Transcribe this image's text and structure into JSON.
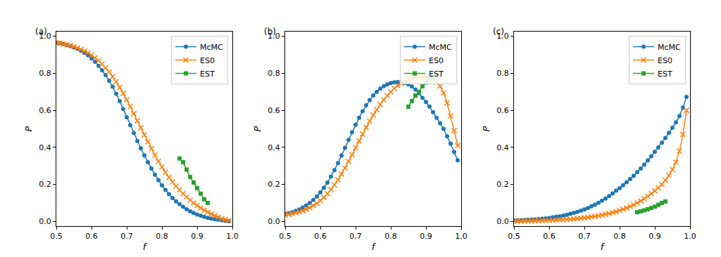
{
  "chart_data": [
    {
      "type": "line",
      "title": "(a)",
      "x_label": "f",
      "y_label": "P",
      "xlim": [
        0.5,
        1.0
      ],
      "ylim": [
        -0.025,
        1.025
      ],
      "xticks": [
        0.5,
        0.6,
        0.7,
        0.8,
        0.9,
        {
          "value": 1.0,
          "label": "1.0"
        }
      ],
      "yticks": [
        {
          "value": 0.0,
          "label": "0.0"
        },
        0.2,
        0.4,
        0.6,
        0.8,
        {
          "value": 1.0,
          "label": "1.0"
        }
      ],
      "grid": false,
      "legend": "upper right",
      "x": [
        0.5,
        0.51,
        0.52,
        0.53,
        0.54,
        0.55,
        0.56,
        0.57,
        0.58,
        0.59,
        0.6,
        0.61,
        0.62,
        0.63,
        0.64,
        0.65,
        0.66,
        0.67,
        0.68,
        0.69,
        0.7,
        0.71,
        0.72,
        0.73,
        0.74,
        0.75,
        0.76,
        0.77,
        0.78,
        0.79,
        0.8,
        0.81,
        0.82,
        0.83,
        0.84,
        0.85,
        0.86,
        0.87,
        0.88,
        0.89,
        0.9,
        0.91,
        0.92,
        0.93,
        0.94,
        0.95,
        0.96,
        0.97,
        0.98,
        0.99
      ],
      "series": [
        {
          "name": "McMC",
          "color": "#1f77b4",
          "marker": "circle",
          "line_style": "solid",
          "values": [
            0.965,
            0.962,
            0.958,
            0.953,
            0.947,
            0.94,
            0.932,
            0.922,
            0.91,
            0.897,
            0.88,
            0.862,
            0.84,
            0.816,
            0.79,
            0.76,
            0.727,
            0.69,
            0.65,
            0.607,
            0.563,
            0.52,
            0.477,
            0.435,
            0.395,
            0.357,
            0.32,
            0.286,
            0.253,
            0.223,
            0.195,
            0.17,
            0.147,
            0.127,
            0.109,
            0.093,
            0.079,
            0.066,
            0.055,
            0.046,
            0.038,
            0.031,
            0.025,
            0.02,
            0.016,
            0.012,
            0.009,
            0.006,
            0.004,
            0.002
          ]
        },
        {
          "name": "ES0",
          "color": "#ff7f0e",
          "marker": "x",
          "line_style": "solid",
          "values": [
            0.965,
            0.962,
            0.958,
            0.954,
            0.95,
            0.944,
            0.937,
            0.929,
            0.92,
            0.91,
            0.898,
            0.884,
            0.868,
            0.85,
            0.83,
            0.807,
            0.782,
            0.754,
            0.724,
            0.692,
            0.657,
            0.62,
            0.582,
            0.544,
            0.506,
            0.468,
            0.43,
            0.393,
            0.358,
            0.325,
            0.294,
            0.265,
            0.238,
            0.213,
            0.19,
            0.17,
            0.15,
            0.132,
            0.115,
            0.1,
            0.086,
            0.073,
            0.061,
            0.05,
            0.04,
            0.031,
            0.023,
            0.016,
            0.01,
            0.005
          ]
        },
        {
          "name": "EST",
          "color": "#2ca02c",
          "marker": "square",
          "line_style": "solid",
          "x": [
            0.85,
            0.86,
            0.87,
            0.88,
            0.89,
            0.9,
            0.91,
            0.92,
            0.93
          ],
          "values": [
            0.34,
            0.32,
            0.28,
            0.24,
            0.21,
            0.18,
            0.15,
            0.12,
            0.1
          ]
        }
      ]
    },
    {
      "type": "line",
      "title": "(b)",
      "x_label": "f",
      "y_label": "P",
      "xlim": [
        0.5,
        1.0
      ],
      "ylim": [
        -0.025,
        1.025
      ],
      "xticks": [
        0.5,
        0.6,
        0.7,
        0.8,
        0.9,
        {
          "value": 1.0,
          "label": "1.0"
        }
      ],
      "yticks": [
        {
          "value": 0.0,
          "label": "0.0"
        },
        0.2,
        0.4,
        0.6,
        0.8,
        {
          "value": 1.0,
          "label": "1.0"
        }
      ],
      "grid": false,
      "legend": "upper right",
      "x": [
        0.5,
        0.51,
        0.52,
        0.53,
        0.54,
        0.55,
        0.56,
        0.57,
        0.58,
        0.59,
        0.6,
        0.61,
        0.62,
        0.63,
        0.64,
        0.65,
        0.66,
        0.67,
        0.68,
        0.69,
        0.7,
        0.71,
        0.72,
        0.73,
        0.74,
        0.75,
        0.76,
        0.77,
        0.78,
        0.79,
        0.8,
        0.81,
        0.82,
        0.83,
        0.84,
        0.85,
        0.86,
        0.87,
        0.88,
        0.89,
        0.9,
        0.91,
        0.92,
        0.93,
        0.94,
        0.95,
        0.96,
        0.97,
        0.98,
        0.99
      ],
      "series": [
        {
          "name": "McMC",
          "color": "#1f77b4",
          "marker": "circle",
          "line_style": "solid",
          "values": [
            0.04,
            0.045,
            0.05,
            0.057,
            0.065,
            0.075,
            0.087,
            0.1,
            0.116,
            0.135,
            0.157,
            0.182,
            0.21,
            0.242,
            0.277,
            0.315,
            0.356,
            0.398,
            0.44,
            0.482,
            0.522,
            0.56,
            0.595,
            0.627,
            0.655,
            0.68,
            0.7,
            0.717,
            0.73,
            0.74,
            0.747,
            0.751,
            0.753,
            0.752,
            0.748,
            0.74,
            0.728,
            0.712,
            0.692,
            0.668,
            0.645,
            0.62,
            0.59,
            0.56,
            0.53,
            0.5,
            0.46,
            0.42,
            0.375,
            0.33
          ]
        },
        {
          "name": "ES0",
          "color": "#ff7f0e",
          "marker": "x",
          "line_style": "solid",
          "values": [
            0.035,
            0.038,
            0.042,
            0.047,
            0.052,
            0.058,
            0.066,
            0.075,
            0.086,
            0.098,
            0.113,
            0.13,
            0.15,
            0.172,
            0.197,
            0.225,
            0.256,
            0.289,
            0.324,
            0.361,
            0.398,
            0.435,
            0.472,
            0.508,
            0.542,
            0.574,
            0.604,
            0.632,
            0.657,
            0.68,
            0.7,
            0.718,
            0.733,
            0.746,
            0.757,
            0.766,
            0.773,
            0.778,
            0.781,
            0.782,
            0.78,
            0.775,
            0.766,
            0.752,
            0.73,
            0.695,
            0.64,
            0.57,
            0.49,
            0.41
          ]
        },
        {
          "name": "EST",
          "color": "#2ca02c",
          "marker": "square",
          "line_style": "solid",
          "x": [
            0.85,
            0.86,
            0.87,
            0.88,
            0.89,
            0.9,
            0.91,
            0.92,
            0.93
          ],
          "values": [
            0.62,
            0.65,
            0.68,
            0.7,
            0.73,
            0.75,
            0.77,
            0.78,
            0.795
          ]
        }
      ]
    },
    {
      "type": "line",
      "title": "(c)",
      "x_label": "f",
      "y_label": "P",
      "xlim": [
        0.5,
        1.0
      ],
      "ylim": [
        -0.025,
        1.025
      ],
      "xticks": [
        0.5,
        0.6,
        0.7,
        0.8,
        0.9,
        {
          "value": 1.0,
          "label": "1.0"
        }
      ],
      "yticks": [
        {
          "value": 0.0,
          "label": "0.0"
        },
        0.2,
        0.4,
        0.6,
        0.8,
        {
          "value": 1.0,
          "label": "1.0"
        }
      ],
      "grid": false,
      "legend": "upper right",
      "x": [
        0.5,
        0.51,
        0.52,
        0.53,
        0.54,
        0.55,
        0.56,
        0.57,
        0.58,
        0.59,
        0.6,
        0.61,
        0.62,
        0.63,
        0.64,
        0.65,
        0.66,
        0.67,
        0.68,
        0.69,
        0.7,
        0.71,
        0.72,
        0.73,
        0.74,
        0.75,
        0.76,
        0.77,
        0.78,
        0.79,
        0.8,
        0.81,
        0.82,
        0.83,
        0.84,
        0.85,
        0.86,
        0.87,
        0.88,
        0.89,
        0.9,
        0.91,
        0.92,
        0.93,
        0.94,
        0.95,
        0.96,
        0.97,
        0.98,
        0.99
      ],
      "series": [
        {
          "name": "McMC",
          "color": "#1f77b4",
          "marker": "circle",
          "line_style": "solid",
          "values": [
            0.005,
            0.006,
            0.007,
            0.008,
            0.009,
            0.01,
            0.011,
            0.013,
            0.015,
            0.017,
            0.019,
            0.022,
            0.025,
            0.028,
            0.032,
            0.036,
            0.041,
            0.046,
            0.052,
            0.058,
            0.065,
            0.073,
            0.082,
            0.091,
            0.101,
            0.112,
            0.124,
            0.137,
            0.151,
            0.166,
            0.18,
            0.196,
            0.212,
            0.229,
            0.247,
            0.266,
            0.286,
            0.307,
            0.329,
            0.352,
            0.376,
            0.4,
            0.425,
            0.451,
            0.478,
            0.506,
            0.535,
            0.569,
            0.615,
            0.672
          ]
        },
        {
          "name": "ES0",
          "color": "#ff7f0e",
          "marker": "x",
          "line_style": "solid",
          "values": [
            0.002,
            0.002,
            0.002,
            0.003,
            0.003,
            0.003,
            0.004,
            0.004,
            0.005,
            0.005,
            0.006,
            0.007,
            0.008,
            0.009,
            0.01,
            0.011,
            0.012,
            0.014,
            0.016,
            0.018,
            0.02,
            0.022,
            0.025,
            0.028,
            0.031,
            0.035,
            0.039,
            0.043,
            0.048,
            0.053,
            0.059,
            0.066,
            0.073,
            0.081,
            0.09,
            0.1,
            0.111,
            0.123,
            0.136,
            0.15,
            0.165,
            0.182,
            0.2,
            0.222,
            0.248,
            0.28,
            0.32,
            0.38,
            0.47,
            0.6
          ]
        },
        {
          "name": "EST",
          "color": "#2ca02c",
          "marker": "square",
          "line_style": "solid",
          "x": [
            0.85,
            0.86,
            0.87,
            0.88,
            0.89,
            0.9,
            0.91,
            0.92,
            0.93
          ],
          "values": [
            0.05,
            0.055,
            0.06,
            0.066,
            0.073,
            0.08,
            0.09,
            0.1,
            0.108
          ]
        }
      ]
    }
  ]
}
